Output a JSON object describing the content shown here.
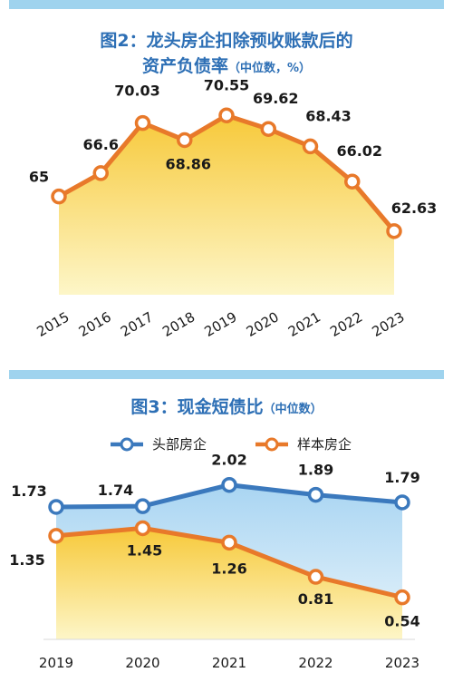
{
  "chart_data": [
    {
      "type": "area",
      "title": "图2：龙头房企扣除预收账款后的",
      "title_line2": "资产负债率",
      "title_note": "（中位数，%）",
      "categories": [
        "2015",
        "2016",
        "2017",
        "2018",
        "2019",
        "2020",
        "2021",
        "2022",
        "2023"
      ],
      "series": [
        {
          "values": [
            65,
            66.6,
            70.03,
            68.86,
            70.55,
            69.62,
            68.43,
            66.02,
            62.63
          ],
          "color": "#e8792a"
        }
      ],
      "value_labels": [
        "65",
        "66.6",
        "70.03",
        "68.86",
        "70.55",
        "69.62",
        "68.43",
        "66.02",
        "62.63"
      ],
      "fill_colors": [
        "#f7c93a",
        "#fdf3b8"
      ],
      "grid": false,
      "legend": "none"
    },
    {
      "type": "area",
      "title": "图3：现金短债比",
      "title_note": "（中位数）",
      "categories": [
        "2019",
        "2020",
        "2021",
        "2022",
        "2023"
      ],
      "series": [
        {
          "name": "头部房企",
          "values": [
            1.73,
            1.74,
            2.02,
            1.89,
            1.79
          ],
          "labels": [
            "1.73",
            "1.74",
            "2.02",
            "1.89",
            "1.79"
          ],
          "color": "#3b79bd"
        },
        {
          "name": "样本房企",
          "values": [
            1.35,
            1.45,
            1.26,
            0.81,
            0.54
          ],
          "labels": [
            "1.35",
            "1.45",
            "1.26",
            "0.81",
            "0.54"
          ],
          "color": "#e8792a"
        }
      ],
      "fill_colors": [
        "#a9d5f2",
        "#f7c93a"
      ],
      "grid": false,
      "legend": "top"
    }
  ]
}
